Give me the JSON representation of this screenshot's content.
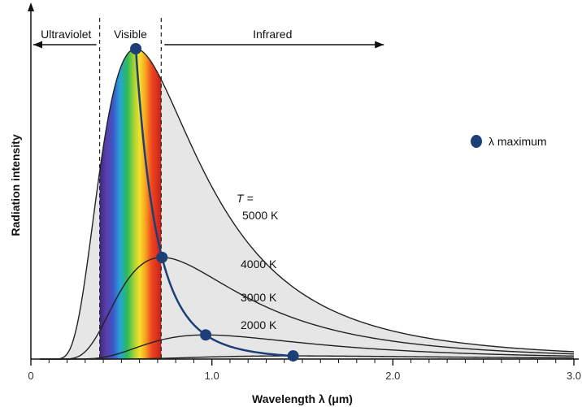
{
  "chart_data": {
    "type": "line",
    "xlabel": "Wavelength λ (μm)",
    "ylabel": "Radiation intensity",
    "xlim": [
      0,
      3.0
    ],
    "ylim": [
      0,
      1.0
    ],
    "x_ticks": [
      "0",
      "1.0",
      "2.0",
      "3.0"
    ],
    "regions": [
      {
        "label": "Ultraviolet",
        "range": [
          0,
          0.38
        ]
      },
      {
        "label": "Visible",
        "range": [
          0.38,
          0.72
        ]
      },
      {
        "label": "Infrared",
        "range": [
          0.72,
          1.95
        ]
      }
    ],
    "series": [
      {
        "name": "5000 K",
        "temperature": 5000,
        "peak": [
          0.56,
          1.0
        ]
      },
      {
        "name": "4000 K",
        "temperature": 4000,
        "peak": [
          0.72,
          0.46
        ]
      },
      {
        "name": "3000 K",
        "temperature": 3000,
        "peak": [
          0.88,
          0.21
        ]
      },
      {
        "name": "2000 K",
        "temperature": 2000,
        "peak": [
          1.22,
          0.07
        ]
      }
    ],
    "peak_locus": {
      "name": "λ maximum",
      "color": "#1d3f77"
    },
    "curve_labels": {
      "prefix": "T =",
      "items": [
        "5000 K",
        "4000 K",
        "3000 K",
        "2000 K"
      ]
    },
    "legend": {
      "label": "λ maximum",
      "position": "right"
    },
    "colors": {
      "fill_under_5000": "#e6e6e6",
      "curve": "#222222",
      "peak": "#1d3f77"
    }
  }
}
